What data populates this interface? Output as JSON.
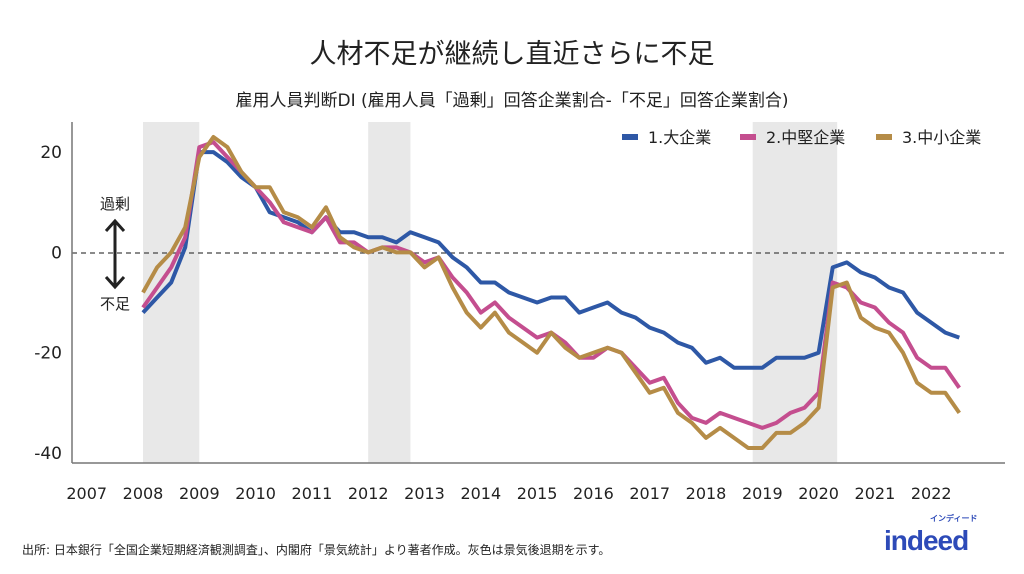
{
  "chart_data": {
    "type": "line",
    "title": "人材不足が継続し直近さらに不足",
    "subtitle": "雇用人員判断DI (雇用人員「過剰」回答企業割合-「不足」回答企業割合)",
    "xlabel": "",
    "ylabel": "",
    "ylim": [
      -42,
      26
    ],
    "yticks": [
      20,
      0,
      -20,
      -40
    ],
    "xticks": [
      "2007",
      "2008",
      "2009",
      "2010",
      "2011",
      "2012",
      "2013",
      "2014",
      "2015",
      "2016",
      "2017",
      "2018",
      "2019",
      "2020",
      "2021",
      "2022"
    ],
    "x": [
      "2008Q1",
      "2008Q2",
      "2008Q3",
      "2008Q4",
      "2009Q1",
      "2009Q2",
      "2009Q3",
      "2009Q4",
      "2010Q1",
      "2010Q2",
      "2010Q3",
      "2010Q4",
      "2011Q1",
      "2011Q2",
      "2011Q3",
      "2011Q4",
      "2012Q1",
      "2012Q2",
      "2012Q3",
      "2012Q4",
      "2013Q1",
      "2013Q2",
      "2013Q3",
      "2013Q4",
      "2014Q1",
      "2014Q2",
      "2014Q3",
      "2014Q4",
      "2015Q1",
      "2015Q2",
      "2015Q3",
      "2015Q4",
      "2016Q1",
      "2016Q2",
      "2016Q3",
      "2016Q4",
      "2017Q1",
      "2017Q2",
      "2017Q3",
      "2017Q4",
      "2018Q1",
      "2018Q2",
      "2018Q3",
      "2018Q4",
      "2019Q1",
      "2019Q2",
      "2019Q3",
      "2019Q4",
      "2020Q1",
      "2020Q2",
      "2020Q3",
      "2020Q4",
      "2021Q1",
      "2021Q2",
      "2021Q3",
      "2021Q4",
      "2022Q1",
      "2022Q2",
      "2022Q3"
    ],
    "series": [
      {
        "name": "1.大企業",
        "color": "#2e58a6",
        "values": [
          -12,
          -9,
          -6,
          1,
          20,
          20,
          18,
          15,
          13,
          8,
          7,
          6,
          4,
          7,
          4,
          4,
          3,
          3,
          2,
          4,
          3,
          2,
          -1,
          -3,
          -6,
          -6,
          -8,
          -9,
          -10,
          -9,
          -9,
          -12,
          -11,
          -10,
          -12,
          -13,
          -15,
          -16,
          -18,
          -19,
          -22,
          -21,
          -23,
          -23,
          -23,
          -21,
          -21,
          -21,
          -20,
          -3,
          -2,
          -4,
          -5,
          -7,
          -8,
          -12,
          -14,
          -16,
          -17
        ]
      },
      {
        "name": "2.中堅企業",
        "color": "#c44e8f",
        "values": [
          -11,
          -7,
          -3,
          3,
          21,
          22,
          19,
          16,
          13,
          10,
          6,
          5,
          4,
          7,
          2,
          2,
          0,
          1,
          1,
          0,
          -2,
          -1,
          -5,
          -8,
          -12,
          -10,
          -13,
          -15,
          -17,
          -16,
          -18,
          -21,
          -21,
          -19,
          -20,
          -23,
          -26,
          -25,
          -30,
          -33,
          -34,
          -32,
          -33,
          -34,
          -35,
          -34,
          -32,
          -31,
          -28,
          -6,
          -7,
          -10,
          -11,
          -14,
          -16,
          -21,
          -23,
          -23,
          -27
        ]
      },
      {
        "name": "3.中小企業",
        "color": "#b58c47",
        "values": [
          -8,
          -3,
          0,
          5,
          19,
          23,
          21,
          16,
          13,
          13,
          8,
          7,
          5,
          9,
          3,
          1,
          0,
          1,
          0,
          0,
          -3,
          -1,
          -7,
          -12,
          -15,
          -12,
          -16,
          -18,
          -20,
          -16,
          -19,
          -21,
          -20,
          -19,
          -20,
          -24,
          -28,
          -27,
          -32,
          -34,
          -37,
          -35,
          -37,
          -39,
          -39,
          -36,
          -36,
          -34,
          -31,
          -7,
          -6,
          -13,
          -15,
          -16,
          -20,
          -26,
          -28,
          -28,
          -32
        ]
      }
    ],
    "shaded_periods": [
      [
        2008.0,
        2009.0
      ],
      [
        2012.0,
        2012.75
      ],
      [
        2018.83,
        2020.33
      ]
    ],
    "reference_line": 0,
    "legend_position": "top-right",
    "annotations": {
      "up": "過剰",
      "down": "不足"
    },
    "shade_color": "#e8e8e8",
    "grid": false
  },
  "footer": {
    "source": "出所: 日本銀行「全国企業短期経済観測調査」、内閣府「景気統計」より著者作成。灰色は景気後退期を示す。"
  },
  "logo": {
    "text": "indeed",
    "kana": "インディード",
    "color": "#2d4ab8"
  }
}
